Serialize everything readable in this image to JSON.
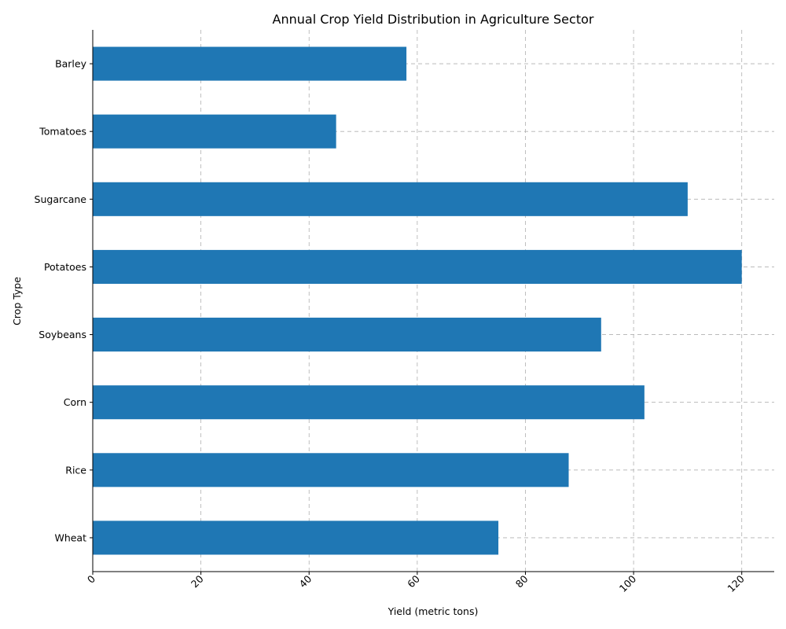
{
  "chart_data": {
    "type": "bar",
    "orientation": "horizontal",
    "title": "Annual Crop Yield Distribution in Agriculture Sector",
    "xlabel": "Yield (metric tons)",
    "ylabel": "Crop Type",
    "categories": [
      "Wheat",
      "Rice",
      "Corn",
      "Soybeans",
      "Potatoes",
      "Sugarcane",
      "Tomatoes",
      "Barley"
    ],
    "values": [
      75,
      88,
      102,
      94,
      120,
      110,
      45,
      58
    ],
    "xlim": [
      0,
      126
    ],
    "xticks": [
      0,
      20,
      40,
      60,
      80,
      100,
      120
    ],
    "xtick_rotation": -45,
    "grid": true,
    "bar_color": "#1f77b4"
  }
}
